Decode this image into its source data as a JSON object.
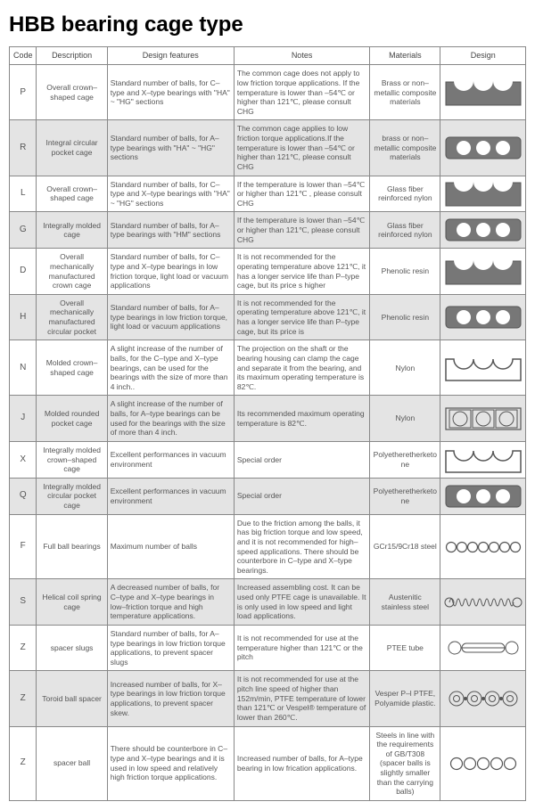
{
  "title": "HBB bearing cage type",
  "header": {
    "code": "Code",
    "description": "Description",
    "features": "Design features",
    "notes": "Notes",
    "materials": "Materials",
    "design": "Design"
  },
  "rows": [
    {
      "code": "P",
      "description": "Overall crown–shaped cage",
      "features": "Standard number of balls, for C–type and X–type bearings with \"HA\" ~ \"HG\" sections",
      "notes": "The common cage does not apply to low friction torque applications. If the temperature is lower than –54℃ or higher than 121℃, please consult CHG",
      "materials": "Brass or non–metallic composite materials",
      "design": "crown-solid"
    },
    {
      "code": "R",
      "description": "Integral circular pocket cage",
      "features": "Standard number of balls, for A–type bearings with \"HA\" ~ \"HG\" sections",
      "notes": "The common cage applies to low friction torque applications.If the temperature is lower than –54℃ or higher than 121℃, please consult CHG",
      "materials": "brass or non–metallic composite materials",
      "design": "pocket-solid"
    },
    {
      "code": "L",
      "description": "Overall crown–shaped cage",
      "features": "Standard number of balls, for C–type and X–type bearings with \"HA\" ~ \"HG\" sections",
      "notes": "If the temperature is lower than –54℃ or higher than 121℃ , please consult CHG",
      "materials": "Glass fiber reinforced nylon",
      "design": "crown-solid"
    },
    {
      "code": "G",
      "description": "Integrally molded cage",
      "features": "Standard number of balls, for A–type bearings with \"HM\" sections",
      "notes": "If the temperature is lower than –54℃ or higher than 121℃, please consult CHG",
      "materials": "Glass fiber reinforced nylon",
      "design": "pocket-solid"
    },
    {
      "code": "D",
      "description": "Overall mechanically manufactured crown cage",
      "features": "Standard number of balls, for C–type and X–type bearings in low friction torque, light load or vacuum applications",
      "notes": "It is not recommended for the operating temperature above 121℃, it has a longer service life than P–type cage, but its price s higher",
      "materials": "Phenolic resin",
      "design": "crown-solid"
    },
    {
      "code": "H",
      "description": "Overall mechanically manufactured circular pocket",
      "features": "Standard number of balls, for A–type bearings in low friction torque, light load or vacuum applications",
      "notes": "It is not recommended for the operating temperature above 121℃, it has a longer service life than P–type cage, but its price is",
      "materials": "Phenolic resin",
      "design": "pocket-solid"
    },
    {
      "code": "N",
      "description": "Molded crown–shaped cage",
      "features": "A slight increase of the number of balls, for the C–type and X–type bearings, can be used for the bearings with the size of more than 4 inch..",
      "notes": "The projection on the shaft or the bearing housing can clamp the cage and separate it from the bearing, and its maximum operating temperature is 82℃.",
      "materials": "Nylon",
      "design": "crown-line"
    },
    {
      "code": "J",
      "description": "Molded rounded pocket cage",
      "features": "A slight increase of the number of balls, for A–type bearings can be used for the bearings with the size of more than 4 inch.",
      "notes": "Its recommended maximum operating temperature is 82℃.",
      "materials": "Nylon",
      "design": "pocket-box"
    },
    {
      "code": "X",
      "description": "Integrally molded crown–shaped cage",
      "features": "Excellent performances in vacuum environment",
      "notes": "Special order",
      "materials": "Polyetheretherketone",
      "design": "crown-line"
    },
    {
      "code": "Q",
      "description": "Integrally molded circular pocket cage",
      "features": "Excellent performances in vacuum environment",
      "notes": "Special order",
      "materials": "Polyetheretherketone",
      "design": "pocket-solid"
    },
    {
      "code": "F",
      "description": "Full ball bearings",
      "features": "Maximum number of balls",
      "notes": "Due to the friction among the balls, it has big friction torque and low speed, and it is not recommended for high–speed applications. There should be counterbore in C–type and X–type bearings.",
      "materials": "GCr15/9Cr18 steel",
      "design": "circles-7"
    },
    {
      "code": "S",
      "description": "Helical coil spring cage",
      "features": "A decreased number of balls, for C–type and X–type bearings in low–friction torque and high temperature applications.",
      "notes": "Increased assembling cost. It can be used only PTFE cage is unavailable. It is only used in low speed and light load applications.",
      "materials": "Austenitic stainless steel",
      "design": "spring"
    },
    {
      "code": "Z",
      "description": "spacer slugs",
      "features": "Standard number of balls, for A–type bearings in low friction torque applications, to prevent spacer slugs",
      "notes": "It is not recommended for use at the temperature higher than 121℃ or the pitch",
      "materials": "PTEE tube",
      "design": "slug"
    },
    {
      "code": "Z",
      "description": "Toroid ball spacer",
      "features": "Increased number of balls, for X–type bearings in low friction torque applications, to prevent spacer skew.",
      "notes": "It is not recommended for use at the pitch line speed of higher than 152m/min, PTFE temperature of lower than 121℃ or Vespel® temperature of lower than 260℃.",
      "materials": "Vesper P–l PTFE, Polyamide plastic.",
      "design": "toroid"
    },
    {
      "code": "Z",
      "description": "spacer ball",
      "features": "There should be counterbore in C–type and X–type bearings and it is used in low speed and relatively high friction torque applications.",
      "notes": "Increased number of balls, for A–type bearing in low frication applications.",
      "materials": "Steels in line with the requirements of GB/T308 (spacer balls is slightly smaller than the carrying balls)",
      "design": "circles-5"
    }
  ],
  "svg_stroke": "#555555",
  "svg_fill": "#777777"
}
